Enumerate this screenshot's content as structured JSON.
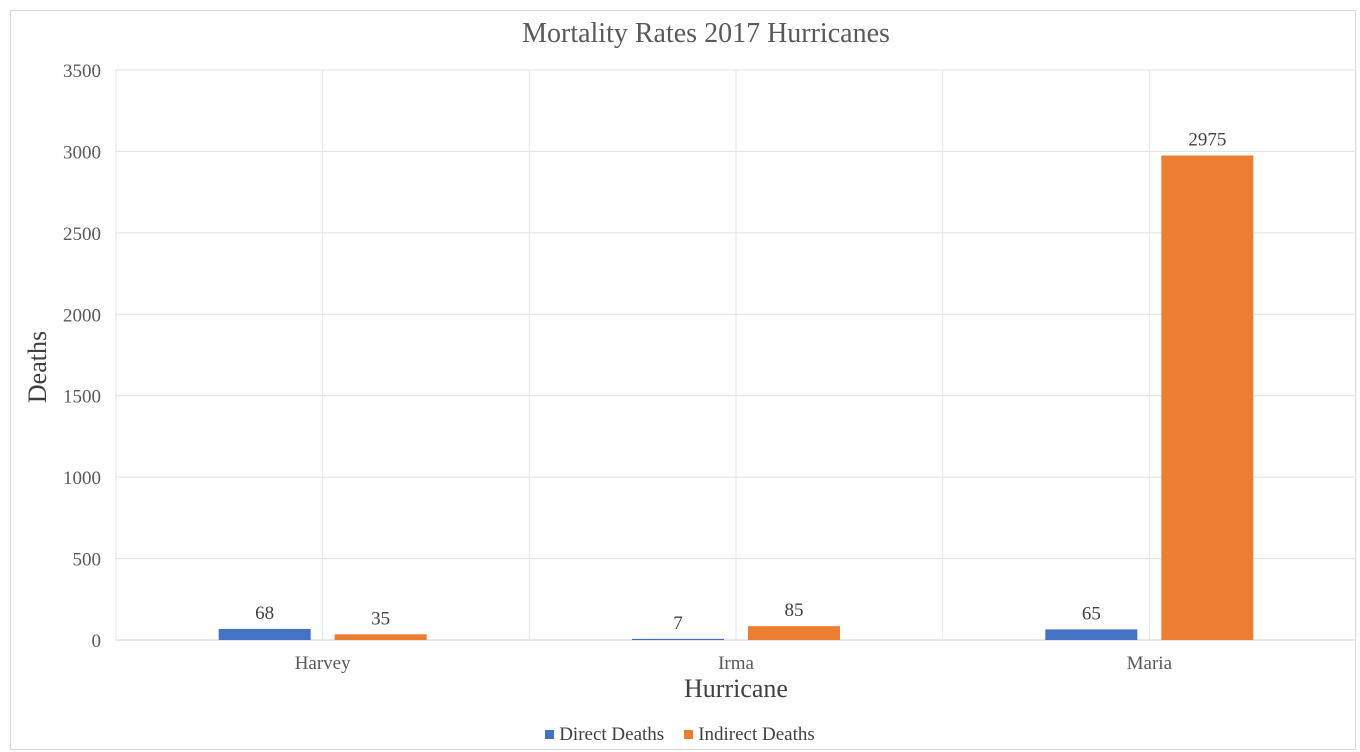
{
  "chart_data": {
    "type": "bar",
    "title": "Mortality Rates 2017 Hurricanes",
    "xlabel": "Hurricane",
    "ylabel": "Deaths",
    "categories": [
      "Harvey",
      "Irma",
      "Maria"
    ],
    "series": [
      {
        "name": "Direct Deaths",
        "color": "#4472c4",
        "values": [
          68,
          7,
          65
        ]
      },
      {
        "name": "Indirect Deaths",
        "color": "#ed7d31",
        "values": [
          35,
          85,
          2975
        ]
      }
    ],
    "ylim": [
      0,
      3500
    ],
    "yticks": [
      0,
      500,
      1000,
      1500,
      2000,
      2500,
      3000,
      3500
    ],
    "grid": true,
    "legend_position": "bottom",
    "data_labels": true
  }
}
